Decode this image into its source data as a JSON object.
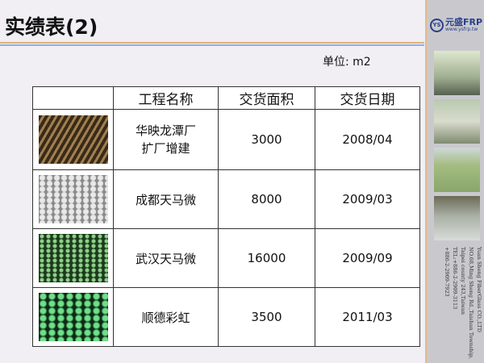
{
  "title": "实绩表(2)",
  "unit": "单位: m2",
  "brand": {
    "mark": "YS",
    "name": "元盛FRP",
    "url": "www.ysfrp.tw"
  },
  "address": [
    "Yuan Sheng FiberGlass CO.,LTD",
    "NO.68,Ming Sheng Rd.,Taishan Township,",
    "Taipei county 243,Taiwan",
    "TEL:+886-2-2909-3113",
    "+886-2-2909-7923"
  ],
  "table": {
    "headers": [
      "",
      "工程名称",
      "交货面积",
      "交货日期"
    ],
    "rows": [
      {
        "name": "华映龙潭厂\n扩厂增建",
        "area": "3000",
        "date": "2008/04"
      },
      {
        "name": "成都天马微",
        "area": "8000",
        "date": "2009/03"
      },
      {
        "name": "武汉天马微",
        "area": "16000",
        "date": "2009/09"
      },
      {
        "name": "顺德彩虹",
        "area": "3500",
        "date": "2011/03"
      }
    ]
  }
}
